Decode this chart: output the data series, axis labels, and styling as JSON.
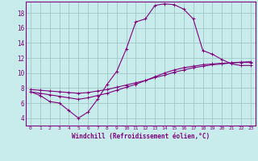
{
  "background_color": "#c8ecec",
  "line_color": "#800080",
  "grid_color": "#a0c8c8",
  "xlabel": "Windchill (Refroidissement éolien,°C)",
  "xlim": [
    -0.5,
    23.5
  ],
  "ylim": [
    3.0,
    19.5
  ],
  "xticks": [
    0,
    1,
    2,
    3,
    4,
    5,
    6,
    7,
    8,
    9,
    10,
    11,
    12,
    13,
    14,
    15,
    16,
    17,
    18,
    19,
    20,
    21,
    22,
    23
  ],
  "yticks": [
    4,
    6,
    8,
    10,
    12,
    14,
    16,
    18
  ],
  "s1_x": [
    0,
    1,
    2,
    3,
    4,
    5,
    6,
    7,
    8,
    9,
    10,
    11,
    12,
    13,
    14,
    15,
    16,
    17,
    18,
    19,
    20,
    21,
    22,
    23
  ],
  "s1_y": [
    7.5,
    7.0,
    6.2,
    6.0,
    5.0,
    4.0,
    4.8,
    6.5,
    8.5,
    10.2,
    13.2,
    16.8,
    17.2,
    19.0,
    19.2,
    19.1,
    18.5,
    17.2,
    13.0,
    12.5,
    11.8,
    11.2,
    11.0,
    11.0
  ],
  "s2_x": [
    0,
    1,
    2,
    3,
    4,
    5,
    6,
    7,
    8,
    9,
    10,
    11,
    12,
    13,
    14,
    15,
    16,
    17,
    18,
    19,
    20,
    21,
    22,
    23
  ],
  "s2_y": [
    7.8,
    7.7,
    7.6,
    7.5,
    7.4,
    7.3,
    7.4,
    7.6,
    7.8,
    8.1,
    8.4,
    8.7,
    9.0,
    9.4,
    9.7,
    10.1,
    10.4,
    10.7,
    10.9,
    11.1,
    11.2,
    11.35,
    11.45,
    11.5
  ],
  "s3_x": [
    0,
    1,
    2,
    3,
    4,
    5,
    6,
    7,
    8,
    9,
    10,
    11,
    12,
    13,
    14,
    15,
    16,
    17,
    18,
    19,
    20,
    21,
    22,
    23
  ],
  "s3_y": [
    7.5,
    7.3,
    7.1,
    6.9,
    6.7,
    6.5,
    6.7,
    7.0,
    7.3,
    7.7,
    8.1,
    8.5,
    9.0,
    9.5,
    10.0,
    10.4,
    10.7,
    10.9,
    11.1,
    11.2,
    11.3,
    11.35,
    11.4,
    11.4
  ],
  "markersize": 3,
  "linewidth": 0.8
}
